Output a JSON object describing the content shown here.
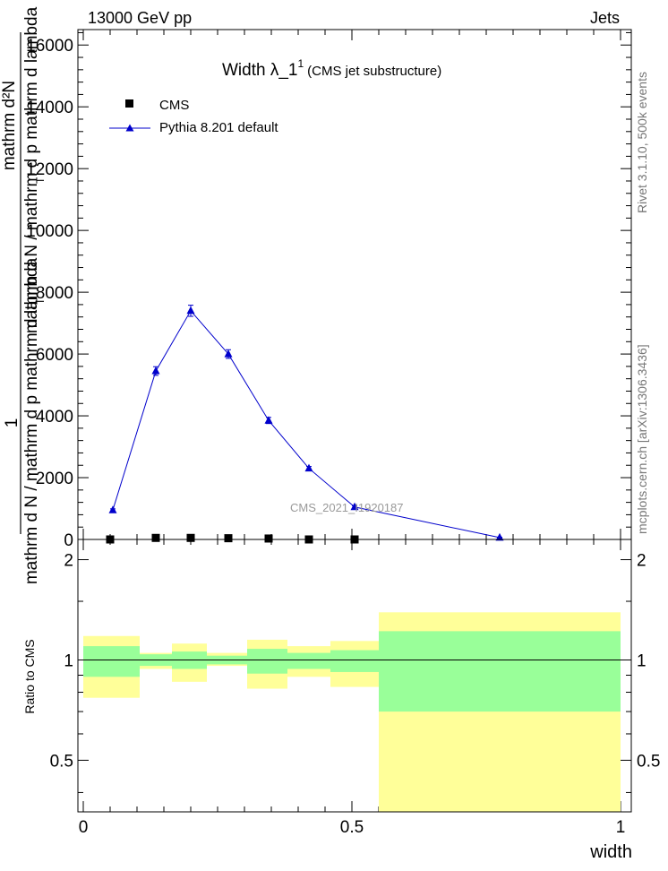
{
  "header": {
    "energy_label": "13000 GeV pp",
    "process_label": "Jets"
  },
  "side": {
    "rivet_label": "Rivet 3.1.10,  500k events",
    "mcplots_label": "mcplots.cern.ch [arXiv:1306.3436]"
  },
  "chart_data": [
    {
      "type": "line",
      "title_main": "Width λ_1",
      "title_sup": "1",
      "title_note": "(CMS jet substructure)",
      "analysis_label": "CMS_2021_I1920187",
      "ylabel_denominator": "mathrm d N / mathrm d p  mathrm d lambda",
      "ylabel_numerator": "mathrm d²N",
      "ylabel_T_top": "T",
      "ylabel_T_bottom": "T",
      "ylabel_lhs": "1",
      "ylim": [
        0,
        16500
      ],
      "y_ticks": [
        0,
        2000,
        4000,
        6000,
        8000,
        10000,
        12000,
        14000,
        16000
      ],
      "y_tick_labels": [
        "0",
        "2000",
        "4000",
        "6000",
        "8000",
        "10000",
        "12000",
        "14000",
        "16000"
      ],
      "legend_position": "top-left",
      "series": [
        {
          "name": "CMS",
          "style": "black squares",
          "x": [
            0.05,
            0.135,
            0.2,
            0.27,
            0.345,
            0.42,
            0.505
          ],
          "y": [
            0,
            50,
            50,
            40,
            30,
            0,
            0
          ]
        },
        {
          "name": "Pythia 8.201 default",
          "style": "blue triangles with line",
          "color": "#0000cc",
          "x": [
            0.055,
            0.135,
            0.2,
            0.27,
            0.345,
            0.42,
            0.505,
            0.775
          ],
          "y": [
            950,
            5450,
            7400,
            6000,
            3850,
            2300,
            1050,
            60
          ],
          "yerr": [
            40,
            140,
            180,
            140,
            100,
            60,
            40,
            10
          ]
        }
      ]
    },
    {
      "type": "area",
      "ylabel": "Ratio to CMS",
      "xlabel": "width",
      "xlim": [
        -0.01,
        1.02
      ],
      "ylim": [
        0.35,
        2.3
      ],
      "x_ticks": [
        0,
        0.5,
        1
      ],
      "x_tick_labels": [
        "0",
        "0.5",
        "1"
      ],
      "y_ticks": [
        0.5,
        1,
        2
      ],
      "y_tick_labels": [
        "0.5",
        "1",
        "2"
      ],
      "reference_line": 1,
      "bands": {
        "inner_color": "#99ff99",
        "outer_color": "#ffff99",
        "bins": [
          {
            "x": [
              0.0,
              0.105
            ],
            "inner": [
              0.89,
              1.1
            ],
            "outer": [
              0.77,
              1.18
            ]
          },
          {
            "x": [
              0.105,
              0.165
            ],
            "inner": [
              0.96,
              1.04
            ],
            "outer": [
              0.94,
              1.05
            ]
          },
          {
            "x": [
              0.165,
              0.23
            ],
            "inner": [
              0.94,
              1.06
            ],
            "outer": [
              0.86,
              1.12
            ]
          },
          {
            "x": [
              0.23,
              0.305
            ],
            "inner": [
              0.97,
              1.03
            ],
            "outer": [
              0.96,
              1.05
            ]
          },
          {
            "x": [
              0.305,
              0.38
            ],
            "inner": [
              0.91,
              1.08
            ],
            "outer": [
              0.82,
              1.15
            ]
          },
          {
            "x": [
              0.38,
              0.46
            ],
            "inner": [
              0.94,
              1.05
            ],
            "outer": [
              0.89,
              1.1
            ]
          },
          {
            "x": [
              0.46,
              0.55
            ],
            "inner": [
              0.92,
              1.07
            ],
            "outer": [
              0.83,
              1.14
            ]
          },
          {
            "x": [
              0.55,
              1.0
            ],
            "inner": [
              0.7,
              1.22
            ],
            "outer": [
              0.35,
              1.39
            ]
          }
        ]
      }
    }
  ]
}
